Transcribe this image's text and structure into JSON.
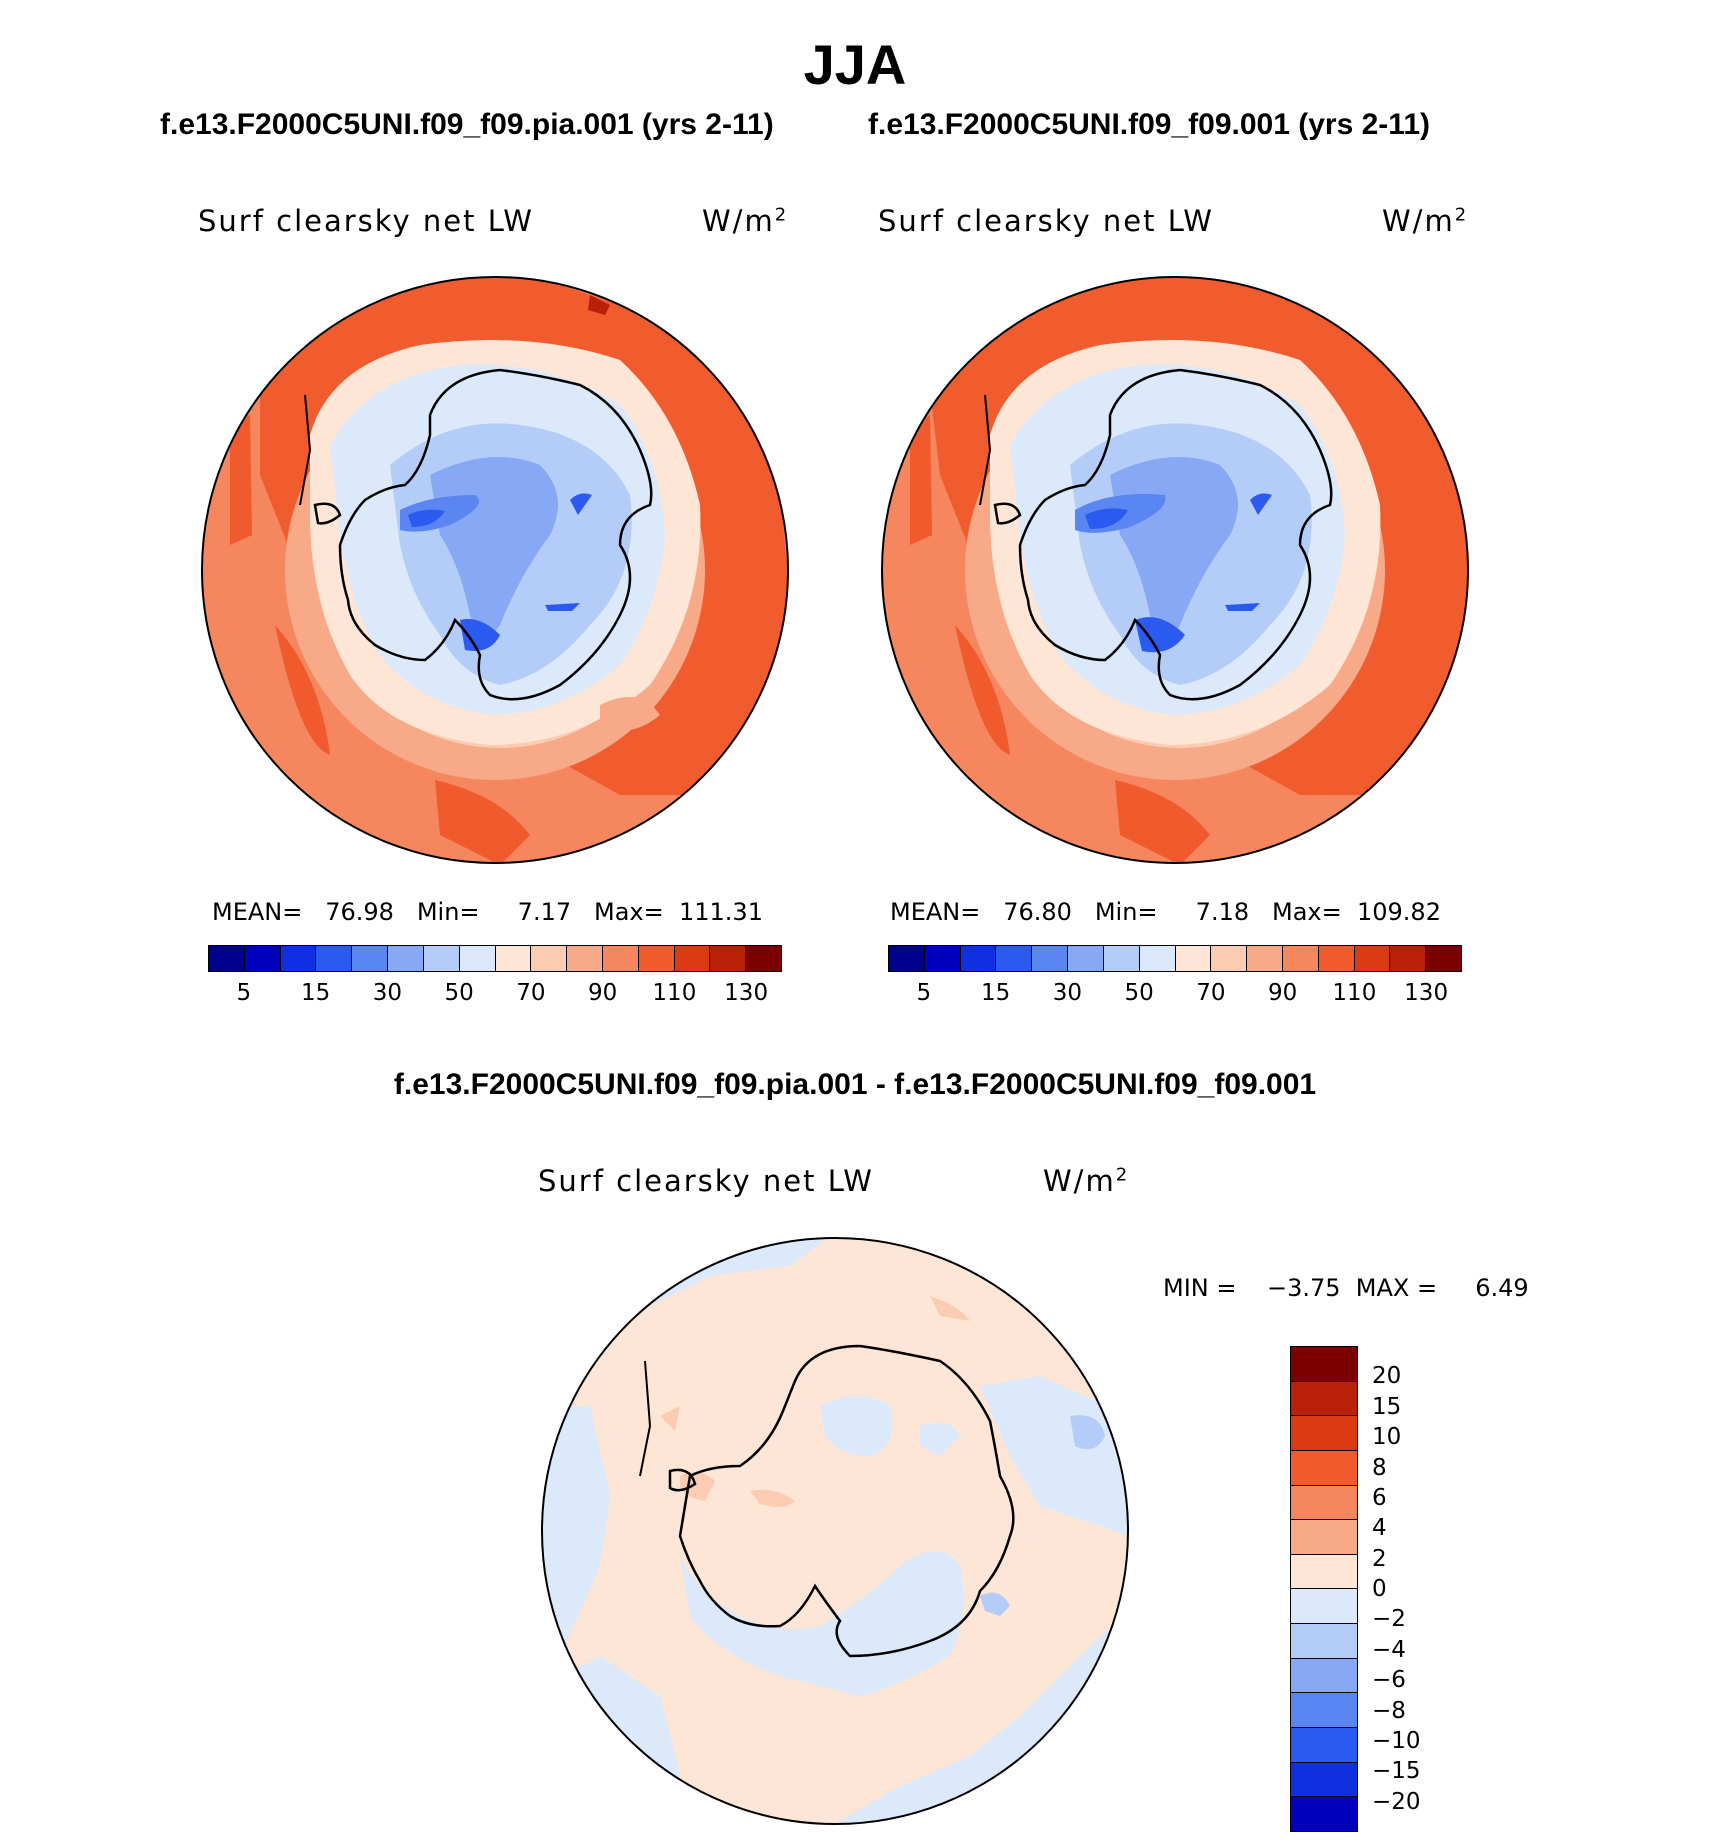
{
  "figure": {
    "title": "JJA"
  },
  "panel_left": {
    "header": "f.e13.F2000C5UNI.f09_f09.pia.001 (yrs 2-11)",
    "variable": "Surf clearsky net LW",
    "units": "W/m",
    "units_exp": "2",
    "stats_line": "MEAN=   76.98   Min=     7.17   Max=  111.31"
  },
  "panel_right": {
    "header": "f.e13.F2000C5UNI.f09_f09.001 (yrs 2-11)",
    "variable": "Surf clearsky net LW",
    "units": "W/m",
    "units_exp": "2",
    "stats_line": "MEAN=   76.80   Min=     7.18   Max=  109.82"
  },
  "panel_diff": {
    "header": "f.e13.F2000C5UNI.f09_f09.pia.001 - f.e13.F2000C5UNI.f09_f09.001",
    "variable": "Surf clearsky net LW",
    "units": "W/m",
    "units_exp": "2",
    "stats_line": "MIN =    −3.75  MAX =     6.49"
  },
  "colorbar_main": {
    "colors": [
      "#00008f",
      "#0000bd",
      "#1030e0",
      "#2a5af0",
      "#5a86f2",
      "#86a8f5",
      "#b4ccf8",
      "#dbe9fb",
      "#fde6d6",
      "#fbcbb2",
      "#f8a988",
      "#f5865e",
      "#f05a2c",
      "#dc3a12",
      "#b82008",
      "#7d0000"
    ],
    "tick_labels": [
      "5",
      "15",
      "30",
      "50",
      "70",
      "90",
      "110",
      "130"
    ]
  },
  "colorbar_diff": {
    "colors": [
      "#7d0000",
      "#b82008",
      "#dc3a12",
      "#f05a2c",
      "#f5865e",
      "#f8a988",
      "#fde6d6",
      "#dbe9fb",
      "#b4ccf8",
      "#86a8f5",
      "#5a86f2",
      "#2a5af0",
      "#1030e0",
      "#0000bd",
      "#00008f"
    ],
    "tick_labels": [
      "20",
      "15",
      "10",
      "8",
      "6",
      "4",
      "2",
      "0",
      "−2",
      "−4",
      "−6",
      "−8",
      "−10",
      "−15",
      "−20"
    ]
  }
}
